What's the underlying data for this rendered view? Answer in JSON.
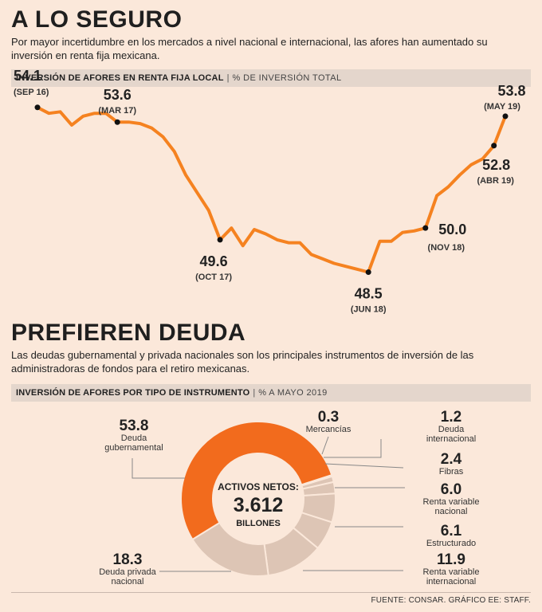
{
  "section1": {
    "title": "A LO SEGURO",
    "intro_line1": "Por mayor incertidumbre en los mercados a nivel nacional e internacional,  las afores han aumentado su",
    "intro_line2": "inversión en renta fija mexicana.",
    "bar_title": "INVERSIÓN DE AFORES EN RENTA FIJA LOCAL",
    "bar_sep": "|",
    "bar_subtitle": "% DE INVERSIÓN TOTAL"
  },
  "section2": {
    "title": "PREFIEREN DEUDA",
    "intro_line1": "Las deudas gubernamental y privada nacionales son los principales instrumentos de inversión de las",
    "intro_line2": "administradoras de fondos para el retiro mexicanas.",
    "bar_title": "INVERSIÓN DE AFORES POR TIPO DE INSTRUMENTO",
    "bar_sep": "|",
    "bar_subtitle": "% A MAYO 2019"
  },
  "source": "FUENTE: CONSAR. GRÁFICO EE: STAFF.",
  "colors": {
    "orange": "#f58220",
    "orange_donut": "#f26b1d",
    "gray": "#ddc5b5",
    "line_gray": "#888888"
  },
  "chart_data": [
    {
      "type": "line",
      "title": "INVERSIÓN DE AFORES EN RENTA FIJA LOCAL",
      "ylabel": "% DE INVERSIÓN TOTAL",
      "x_start": "SEP 16",
      "x_end": "MAY 19",
      "ylim": [
        48.0,
        54.5
      ],
      "values": [
        54.1,
        53.9,
        53.95,
        53.5,
        53.8,
        53.9,
        53.9,
        53.6,
        53.6,
        53.55,
        53.4,
        53.1,
        52.6,
        51.8,
        51.2,
        50.6,
        49.6,
        50.0,
        49.4,
        49.95,
        49.8,
        49.6,
        49.5,
        49.5,
        49.1,
        48.95,
        48.8,
        48.7,
        48.6,
        48.5,
        49.55,
        49.55,
        49.85,
        49.9,
        50.0,
        51.1,
        51.4,
        51.8,
        52.15,
        52.35,
        52.8,
        53.8
      ],
      "annotations": [
        {
          "index": 0,
          "value": "54.1",
          "label": "(SEP 16)"
        },
        {
          "index": 7,
          "value": "53.6",
          "label": "(MAR 17)"
        },
        {
          "index": 13,
          "value": "49.6",
          "label": "(OCT 17)"
        },
        {
          "index": 21,
          "value": "48.5",
          "label": "(JUN 18)"
        },
        {
          "index": 26,
          "value": "50.0",
          "label": "(NOV 18)"
        },
        {
          "index": 31,
          "value": "52.8",
          "label": "(ABR 19)"
        },
        {
          "index": 32,
          "value": "53.8",
          "label": "(MAY 19)"
        }
      ]
    },
    {
      "type": "pie",
      "donut": true,
      "title": "INVERSIÓN DE AFORES POR TIPO DE INSTRUMENTO",
      "subtitle": "% A MAYO 2019",
      "center_label_top": "ACTIVOS NETOS:",
      "center_value": "3.612",
      "center_label_bottom": "BILLONES",
      "slices": [
        {
          "value": 53.8,
          "label1": "Deuda",
          "label2": "gubernamental"
        },
        {
          "value": 0.3,
          "label1": "Mercancías",
          "label2": ""
        },
        {
          "value": 1.2,
          "label1": "Deuda",
          "label2": "internacional"
        },
        {
          "value": 2.4,
          "label1": "Fibras",
          "label2": ""
        },
        {
          "value": 6.0,
          "label1": "Renta variable",
          "label2": "nacional"
        },
        {
          "value": 6.1,
          "label1": "Estructurado",
          "label2": ""
        },
        {
          "value": 11.9,
          "label1": "Renta variable",
          "label2": "internacional"
        },
        {
          "value": 18.3,
          "label1": "Deuda privada",
          "label2": "nacional"
        }
      ]
    }
  ]
}
